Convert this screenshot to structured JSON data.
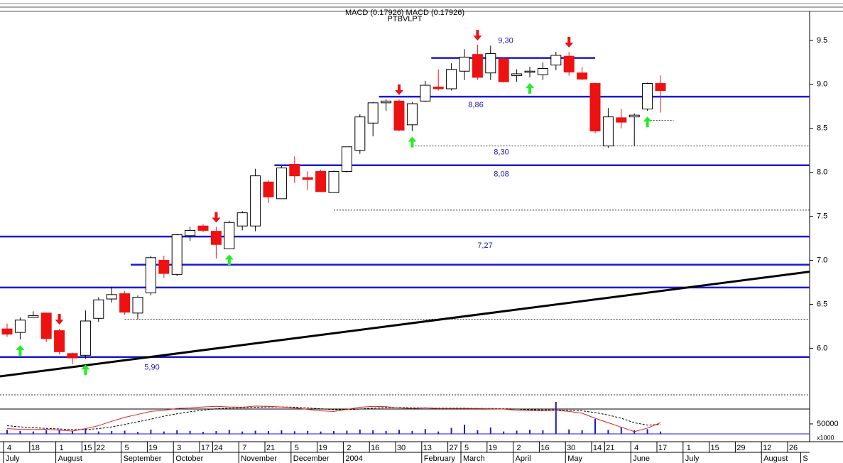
{
  "chart_data": {
    "type": "candlestick",
    "header": "MACD (0.17926) MACD (0.17926)",
    "subheader": "PTBVLPT",
    "categories": [
      "4",
      null,
      "18",
      null,
      "1",
      null,
      "15",
      "22",
      null,
      "5",
      null,
      "19",
      null,
      "3",
      null,
      "17",
      "24",
      null,
      "7",
      null,
      "21",
      null,
      "5",
      null,
      "19",
      null,
      "2",
      null,
      "16",
      null,
      "30",
      null,
      "13",
      null,
      "27",
      "5",
      null,
      "19",
      null,
      "2",
      null,
      "16",
      null,
      "30",
      null,
      "14",
      "21",
      null,
      "4",
      null,
      "17",
      null,
      "1",
      null,
      "15",
      null,
      "29",
      null,
      "12",
      null,
      "26",
      null
    ],
    "months": [
      "July",
      null,
      null,
      null,
      "August",
      null,
      null,
      null,
      null,
      "September",
      null,
      null,
      null,
      "October",
      null,
      null,
      null,
      null,
      "November",
      null,
      null,
      null,
      "December",
      null,
      null,
      null,
      "2004",
      null,
      null,
      null,
      null,
      null,
      "February",
      null,
      null,
      "March",
      null,
      null,
      null,
      "April",
      null,
      null,
      null,
      "May",
      null,
      null,
      null,
      null,
      "June",
      null,
      null,
      null,
      "July",
      null,
      null,
      null,
      null,
      null,
      "August",
      null,
      null,
      "S"
    ],
    "open": [
      6.22,
      6.18,
      6.35,
      6.4,
      6.2,
      5.94,
      5.92,
      6.34,
      6.56,
      6.62,
      6.4,
      6.63,
      7.0,
      6.84,
      7.28,
      7.39,
      7.33,
      7.13,
      7.39,
      7.39,
      7.89,
      7.7,
      8.09,
      7.94,
      8.01,
      7.77,
      8.01,
      8.25,
      8.56,
      8.79,
      8.81,
      8.54,
      8.81,
      8.97,
      8.95,
      9.15,
      9.34,
      9.13,
      9.29,
      9.1,
      9.14,
      9.11,
      9.22,
      9.32,
      9.13,
      9.01,
      8.3,
      8.62,
      8.63,
      8.72,
      9.01,
      null,
      null,
      null,
      null,
      null,
      null,
      null,
      null,
      null,
      null,
      null
    ],
    "high": [
      6.28,
      6.35,
      6.42,
      6.4,
      6.22,
      5.95,
      6.43,
      6.58,
      6.7,
      6.65,
      6.6,
      7.05,
      7.05,
      7.3,
      7.38,
      7.41,
      7.38,
      7.45,
      7.56,
      8.04,
      7.91,
      8.07,
      8.18,
      8.01,
      8.03,
      8.02,
      8.29,
      8.66,
      8.8,
      8.83,
      8.83,
      8.8,
      9.04,
      9.17,
      9.24,
      9.4,
      9.45,
      9.44,
      9.31,
      9.17,
      9.2,
      9.25,
      9.37,
      9.37,
      9.2,
      9.02,
      8.73,
      8.72,
      8.67,
      9.02,
      9.1,
      null,
      null,
      null,
      null,
      null,
      null,
      null,
      null,
      null,
      null,
      null
    ],
    "low": [
      6.13,
      6.1,
      6.35,
      6.07,
      5.93,
      5.82,
      5.88,
      6.3,
      6.52,
      6.38,
      6.33,
      6.6,
      6.8,
      6.82,
      7.22,
      7.32,
      7.02,
      7.13,
      7.34,
      7.33,
      7.65,
      7.7,
      7.88,
      7.8,
      7.78,
      7.77,
      8.0,
      8.21,
      8.41,
      8.7,
      8.47,
      8.47,
      8.8,
      8.93,
      8.93,
      9.05,
      9.05,
      9.05,
      9.02,
      9.03,
      9.08,
      9.05,
      9.16,
      9.1,
      9.05,
      8.44,
      8.28,
      8.5,
      8.3,
      8.7,
      8.68,
      null,
      null,
      null,
      null,
      null,
      null,
      null,
      null,
      null,
      null,
      null
    ],
    "close": [
      6.16,
      6.32,
      6.37,
      6.11,
      5.96,
      5.89,
      6.31,
      6.55,
      6.61,
      6.41,
      6.58,
      7.03,
      6.85,
      7.29,
      7.34,
      7.34,
      7.18,
      7.43,
      7.54,
      7.96,
      7.72,
      8.05,
      7.96,
      7.92,
      7.78,
      8.01,
      8.29,
      8.63,
      8.79,
      8.81,
      8.48,
      8.78,
      8.99,
      8.95,
      9.17,
      9.31,
      9.08,
      9.35,
      9.03,
      9.12,
      9.15,
      9.18,
      9.33,
      9.14,
      9.06,
      8.47,
      8.63,
      8.57,
      8.65,
      9.01,
      8.93,
      null,
      null,
      null,
      null,
      null,
      null,
      null,
      null,
      null,
      null,
      null
    ],
    "up_color": "#ffffff",
    "down_color": "#ee1111",
    "ylim": [
      5.43,
      9.83
    ],
    "yticks": [
      {
        "value": 6.0,
        "label": "6.0"
      },
      {
        "value": 6.5,
        "label": "6.5"
      },
      {
        "value": 7.0,
        "label": "7.0"
      },
      {
        "value": 7.5,
        "label": "7.5"
      },
      {
        "value": 8.0,
        "label": "8.0"
      },
      {
        "value": 8.5,
        "label": "8.5"
      },
      {
        "value": 9.0,
        "label": "9.0"
      },
      {
        "value": 9.5,
        "label": "9.5"
      }
    ],
    "levels": [
      {
        "value": 9.3,
        "label": "9,30"
      },
      {
        "value": 8.86,
        "label": "8,86"
      },
      {
        "value": 8.08,
        "label": "8,08"
      },
      {
        "value": 7.27,
        "label": "7,27"
      },
      6.95,
      6.69,
      {
        "value": 5.9,
        "label": "5,90"
      }
    ],
    "dashed_levels": [
      {
        "value": 8.3,
        "label": "8,30"
      },
      7.57,
      6.33,
      8.59,
      5.47
    ],
    "trendline": {
      "start": 5.68,
      "end": 6.87
    },
    "volume": [
      20000,
      15000,
      12000,
      18000,
      22000,
      15000,
      25000,
      12000,
      14000,
      16000,
      10000,
      21000,
      12000,
      18000,
      15000,
      10000,
      14000,
      20000,
      12000,
      16000,
      14000,
      18000,
      13000,
      15000,
      12000,
      14000,
      16000,
      22000,
      18000,
      15000,
      20000,
      14000,
      24000,
      12000,
      30000,
      46000,
      18000,
      32000,
      12000,
      16000,
      20000,
      18000,
      160000,
      22000,
      18000,
      75000,
      20000,
      34000,
      18000,
      24000,
      12000,
      null,
      null,
      null,
      null,
      null,
      null,
      null,
      null,
      null,
      null,
      null
    ],
    "volume_ylim": [
      0,
      160000
    ],
    "volume_yticks": [
      50000
    ],
    "volume_unit": "x1000",
    "macd": [
      -0.4,
      -0.42,
      -0.43,
      -0.42,
      -0.45,
      -0.48,
      -0.4,
      -0.3,
      -0.15,
      -0.02,
      0.08,
      0.18,
      0.22,
      0.28,
      0.3,
      0.33,
      0.35,
      0.33,
      0.32,
      0.36,
      0.35,
      0.33,
      0.3,
      0.25,
      0.2,
      0.18,
      0.25,
      0.32,
      0.35,
      0.34,
      0.3,
      0.28,
      0.3,
      0.28,
      0.28,
      0.28,
      0.28,
      0.27,
      0.26,
      0.22,
      0.2,
      0.2,
      0.22,
      0.18,
      0.12,
      -0.05,
      -0.2,
      -0.35,
      -0.5,
      -0.38,
      -0.2,
      null,
      null,
      null,
      null,
      null,
      null,
      null,
      null,
      null,
      null,
      null
    ],
    "signal": [
      -0.3,
      -0.34,
      -0.37,
      -0.39,
      -0.41,
      -0.43,
      -0.43,
      -0.4,
      -0.34,
      -0.26,
      -0.17,
      -0.08,
      0.02,
      0.1,
      0.17,
      0.22,
      0.27,
      0.29,
      0.3,
      0.32,
      0.33,
      0.33,
      0.32,
      0.3,
      0.27,
      0.24,
      0.24,
      0.26,
      0.29,
      0.31,
      0.31,
      0.3,
      0.3,
      0.29,
      0.29,
      0.29,
      0.28,
      0.28,
      0.27,
      0.26,
      0.24,
      0.23,
      0.23,
      0.22,
      0.2,
      0.14,
      0.06,
      -0.05,
      -0.2,
      -0.28,
      -0.26,
      null,
      null,
      null,
      null,
      null,
      null,
      null,
      null,
      null,
      null,
      null
    ],
    "macd_ylim": [
      -0.6,
      0.5
    ]
  }
}
